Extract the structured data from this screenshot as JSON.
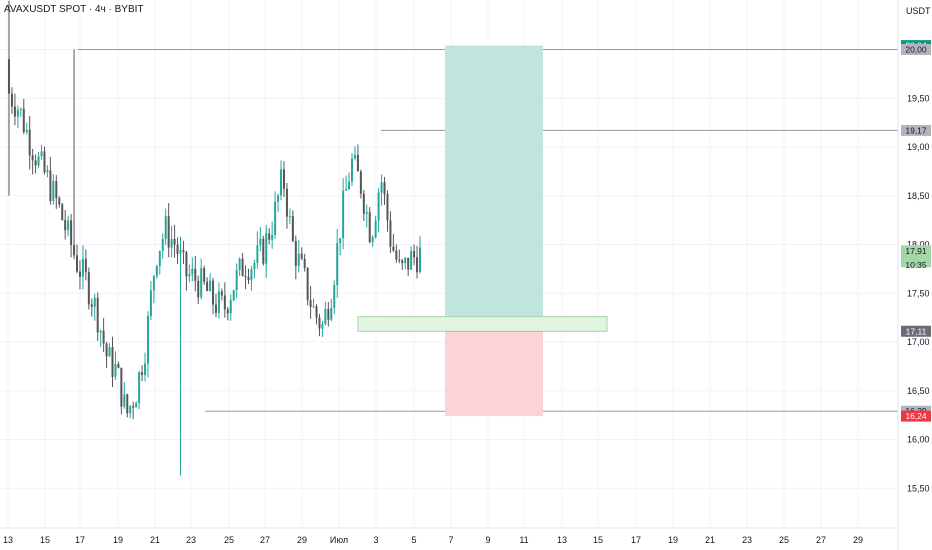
{
  "header": {
    "symbol_title": "AVAXUSDT SPOT · 4ч · BYBIT",
    "currency": "USDT",
    "countdown": "10:35"
  },
  "colors": {
    "bull": "#26a69a",
    "bear": "#555555",
    "profit_zone": "#bfe5dd",
    "loss_zone": "#fbd4d8",
    "entry_box": "#e3f4e1",
    "grid": "#f0f3fa"
  },
  "chart_data": {
    "type": "candlestick",
    "x_tick_labels": [
      "13",
      "15",
      "17",
      "19",
      "21",
      "23",
      "25",
      "27",
      "29",
      "Июл",
      "3",
      "5",
      "7",
      "9",
      "11",
      "13",
      "15",
      "17",
      "19",
      "21",
      "23",
      "25",
      "27",
      "29"
    ],
    "y_tick_labels": [
      "20,00",
      "19,50",
      "19,00",
      "18,50",
      "18,00",
      "17,50",
      "17,00",
      "16,50",
      "16,00",
      "15,50"
    ],
    "y_range": [
      15.5,
      20.5
    ],
    "price_labels": [
      {
        "text": "20,04",
        "value": 20.04,
        "style": "green"
      },
      {
        "text": "20,00",
        "value": 20.0,
        "style": "gray"
      },
      {
        "text": "19,17",
        "value": 19.17,
        "style": "gray"
      },
      {
        "text": "17,91",
        "value": 17.91,
        "style": "lightgreen"
      },
      {
        "text": "17,11",
        "value": 17.11,
        "style": "darkgray"
      },
      {
        "text": "16,29",
        "value": 16.29,
        "style": "gray"
      },
      {
        "text": "16,24",
        "value": 16.24,
        "style": "red"
      }
    ],
    "horizontal_levels": [
      20.0,
      19.17,
      16.29
    ],
    "position": {
      "entry": 17.11,
      "take_profit": 20.04,
      "stop_loss": 16.24
    },
    "entry_zone": {
      "low": 17.11,
      "high": 17.26
    },
    "last_price": 17.91,
    "close_path": [
      19.55,
      19.4,
      19.1,
      18.85,
      18.65,
      18.4,
      18.1,
      17.8,
      17.6,
      17.3,
      16.85,
      16.7,
      16.25,
      16.5,
      17.0,
      17.9,
      18.15,
      18.0,
      17.7,
      17.65,
      17.55,
      17.4,
      17.35,
      17.6,
      17.8,
      17.8,
      17.95,
      18.25,
      18.7,
      18.0,
      17.7,
      17.35,
      17.15,
      17.55,
      18.3,
      18.85,
      18.6,
      18.1,
      18.7,
      18.05,
      17.7,
      17.85,
      17.9
    ],
    "wick_extremes": {
      "high": 20.0,
      "low": 15.63
    }
  }
}
